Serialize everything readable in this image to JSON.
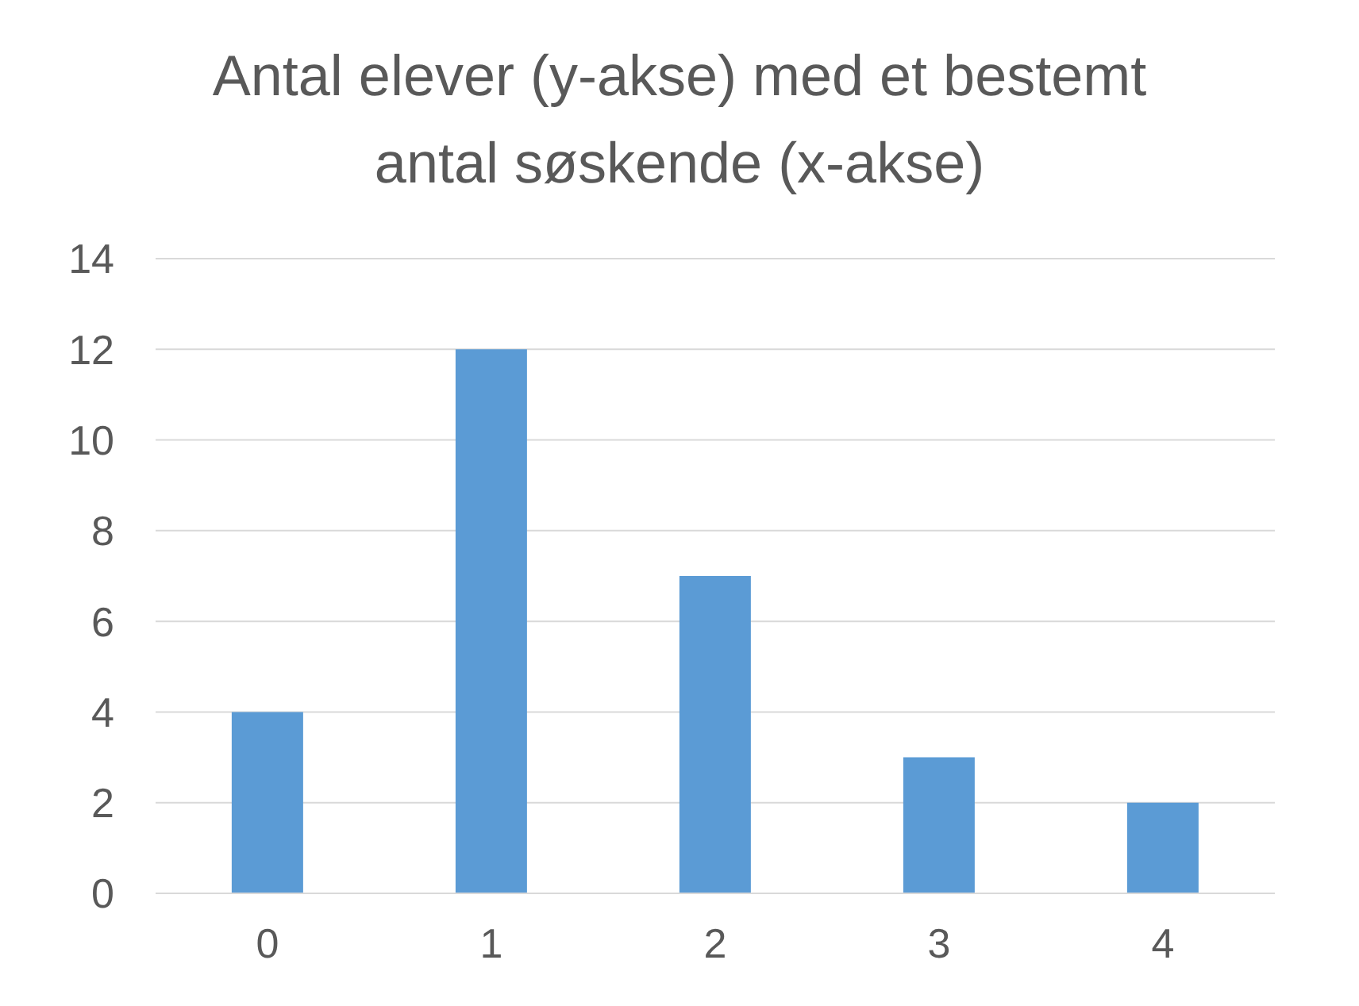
{
  "chart_data": {
    "type": "bar",
    "title": "Antal elever (y-akse) med et bestemt antal søskende (x-akse)",
    "categories": [
      "0",
      "1",
      "2",
      "3",
      "4"
    ],
    "values": [
      4,
      12,
      7,
      3,
      2
    ],
    "color": "#5b9bd5",
    "ylim": [
      0,
      14
    ],
    "yticks": [
      0,
      2,
      4,
      6,
      8,
      10,
      12,
      14
    ],
    "grid": "y"
  }
}
